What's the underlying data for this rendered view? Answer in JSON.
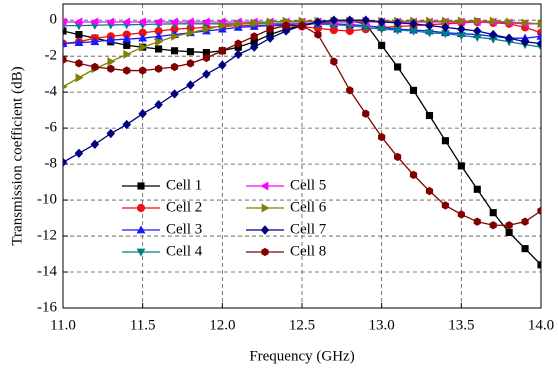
{
  "chart_data": {
    "type": "line",
    "x_label": "Frequency (GHz)",
    "y_label": "Transmission coefficient (dB)",
    "x": [
      11.0,
      11.1,
      11.2,
      11.3,
      11.4,
      11.5,
      11.6,
      11.7,
      11.8,
      11.9,
      12.0,
      12.1,
      12.2,
      12.3,
      12.4,
      12.5,
      12.6,
      12.7,
      12.8,
      12.9,
      13.0,
      13.1,
      13.2,
      13.3,
      13.4,
      13.5,
      13.6,
      13.7,
      13.8,
      13.9,
      14.0
    ],
    "xlim": [
      11,
      14
    ],
    "xticks": [
      {
        "value": 11,
        "label": "11.0"
      },
      11.5,
      {
        "value": 12,
        "label": "12.0"
      },
      12.5,
      {
        "value": 13,
        "label": "13.0"
      },
      13.5,
      {
        "value": 14,
        "label": "14.0"
      }
    ],
    "ylim": [
      -16,
      0.9
    ],
    "yticks": [
      0,
      -2,
      -4,
      -6,
      -8,
      -10,
      -12,
      -14,
      -16
    ],
    "grid": true,
    "series": [
      {
        "name": "Cell 1",
        "color": "#000000",
        "marker": "square",
        "values": [
          -0.6,
          -0.8,
          -1.0,
          -1.2,
          -1.4,
          -1.5,
          -1.6,
          -1.7,
          -1.75,
          -1.8,
          -1.7,
          -1.5,
          -1.2,
          -0.8,
          -0.5,
          -0.3,
          -0.15,
          -0.1,
          -0.05,
          -0.2,
          -1.4,
          -2.6,
          -3.9,
          -5.3,
          -6.7,
          -8.1,
          -9.4,
          -10.7,
          -11.8,
          -12.7,
          -13.6
        ]
      },
      {
        "name": "Cell 2",
        "color": "#ee1111",
        "marker": "circle",
        "values": [
          -1.3,
          -1.2,
          -1.0,
          -0.9,
          -0.8,
          -0.7,
          -0.6,
          -0.5,
          -0.45,
          -0.4,
          -0.35,
          -0.3,
          -0.3,
          -0.3,
          -0.3,
          -0.35,
          -0.45,
          -0.55,
          -0.6,
          -0.5,
          -0.4,
          -0.35,
          -0.3,
          -0.25,
          -0.2,
          -0.15,
          -0.1,
          -0.15,
          -0.2,
          -0.4,
          -0.7
        ]
      },
      {
        "name": "Cell 3",
        "color": "#1a1aff",
        "marker": "triangle-up",
        "values": [
          -1.3,
          -1.25,
          -1.2,
          -1.1,
          -1.05,
          -1.0,
          -0.9,
          -0.8,
          -0.7,
          -0.6,
          -0.5,
          -0.4,
          -0.35,
          -0.3,
          -0.25,
          -0.2,
          -0.2,
          -0.2,
          -0.25,
          -0.3,
          -0.4,
          -0.5,
          -0.55,
          -0.6,
          -0.7,
          -0.75,
          -0.8,
          -0.9,
          -1.0,
          -1.0,
          -0.9
        ]
      },
      {
        "name": "Cell 4",
        "color": "#008080",
        "marker": "triangle-down",
        "values": [
          -0.3,
          -0.3,
          -0.28,
          -0.26,
          -0.25,
          -0.24,
          -0.22,
          -0.2,
          -0.2,
          -0.2,
          -0.2,
          -0.2,
          -0.2,
          -0.2,
          -0.2,
          -0.2,
          -0.22,
          -0.25,
          -0.3,
          -0.4,
          -0.5,
          -0.55,
          -0.6,
          -0.7,
          -0.75,
          -0.85,
          -0.95,
          -1.05,
          -1.2,
          -1.35,
          -1.5
        ]
      },
      {
        "name": "Cell 5",
        "color": "#ff00ff",
        "marker": "triangle-left",
        "values": [
          -0.1,
          -0.1,
          -0.1,
          -0.1,
          -0.1,
          -0.1,
          -0.1,
          -0.1,
          -0.1,
          -0.1,
          -0.1,
          -0.1,
          -0.1,
          -0.1,
          -0.1,
          -0.1,
          -0.1,
          -0.1,
          -0.1,
          -0.1,
          -0.1,
          -0.1,
          -0.1,
          -0.1,
          -0.1,
          -0.1,
          -0.1,
          -0.1,
          -0.15,
          -0.2,
          -0.2
        ]
      },
      {
        "name": "Cell 6",
        "color": "#808000",
        "marker": "triangle-right",
        "values": [
          -3.7,
          -3.2,
          -2.7,
          -2.3,
          -1.9,
          -1.5,
          -1.2,
          -0.9,
          -0.7,
          -0.5,
          -0.3,
          -0.2,
          -0.15,
          -0.1,
          -0.05,
          -0.05,
          -0.05,
          -0.05,
          -0.05,
          -0.05,
          -0.05,
          -0.05,
          -0.05,
          -0.05,
          -0.05,
          -0.05,
          -0.05,
          -0.05,
          -0.1,
          -0.15,
          -0.2
        ]
      },
      {
        "name": "Cell 7",
        "color": "#000080",
        "marker": "diamond",
        "values": [
          -7.9,
          -7.4,
          -6.9,
          -6.3,
          -5.8,
          -5.2,
          -4.7,
          -4.1,
          -3.6,
          -3.0,
          -2.5,
          -1.9,
          -1.5,
          -1.0,
          -0.6,
          -0.3,
          -0.1,
          0,
          0,
          0,
          -0.1,
          -0.15,
          -0.2,
          -0.3,
          -0.4,
          -0.5,
          -0.6,
          -0.8,
          -1.0,
          -1.2,
          -1.3
        ]
      },
      {
        "name": "Cell 8",
        "color": "#800000",
        "marker": "hexagon",
        "values": [
          -2.2,
          -2.4,
          -2.6,
          -2.7,
          -2.8,
          -2.8,
          -2.7,
          -2.6,
          -2.4,
          -2.1,
          -1.7,
          -1.3,
          -0.9,
          -0.5,
          -0.3,
          -0.3,
          -0.8,
          -2.3,
          -3.9,
          -5.2,
          -6.5,
          -7.6,
          -8.6,
          -9.5,
          -10.3,
          -10.8,
          -11.2,
          -11.4,
          -11.4,
          -11.2,
          -10.6
        ]
      }
    ]
  }
}
